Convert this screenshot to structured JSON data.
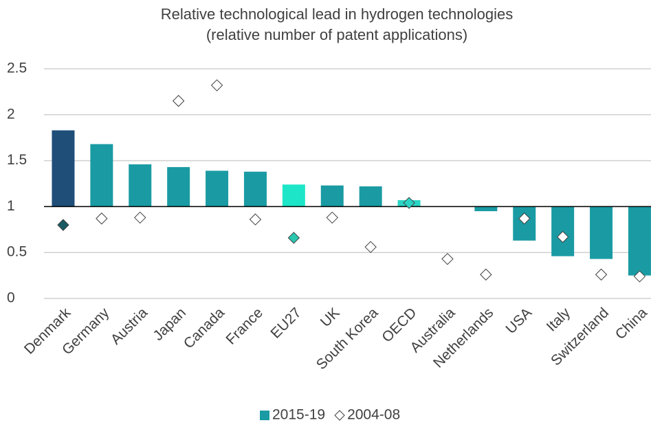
{
  "chart_data": {
    "type": "bar",
    "title": [
      "Relative technological lead in hydrogen technologies",
      "(relative number of patent applications)"
    ],
    "categories": [
      "Denmark",
      "Germany",
      "Austria",
      "Japan",
      "Canada",
      "France",
      "EU27",
      "UK",
      "South Korea",
      "OECD",
      "Australia",
      "Netherlands",
      "USA",
      "Italy",
      "Switzerland",
      "China"
    ],
    "series": [
      {
        "name": "2015-19",
        "type": "bar",
        "color": "#1a9ba3",
        "colors": [
          "#1f4e79",
          "#1a9ba3",
          "#1a9ba3",
          "#1a9ba3",
          "#1a9ba3",
          "#1a9ba3",
          "#1de5c8",
          "#1a9ba3",
          "#1a9ba3",
          "#2ad4c4",
          "#1a9ba3",
          "#1a9ba3",
          "#1a9ba3",
          "#1a9ba3",
          "#1a9ba3",
          "#1a9ba3"
        ],
        "values": [
          1.83,
          1.68,
          1.46,
          1.43,
          1.39,
          1.38,
          1.24,
          1.23,
          1.22,
          1.07,
          1.0,
          0.95,
          0.63,
          0.46,
          0.43,
          0.25
        ]
      },
      {
        "name": "2004-08",
        "type": "scatter",
        "color": "#ffffff",
        "colors": [
          "#1a5a63",
          "#ffffff",
          "#ffffff",
          "#ffffff",
          "#ffffff",
          "#ffffff",
          "#2ac7b0",
          "#ffffff",
          "#ffffff",
          "#2ad4c4",
          "#ffffff",
          "#ffffff",
          "#ffffff",
          "#ffffff",
          "#ffffff",
          "#ffffff"
        ],
        "values": [
          0.8,
          0.87,
          0.88,
          2.15,
          2.32,
          0.86,
          0.66,
          0.88,
          0.56,
          1.04,
          0.43,
          0.26,
          0.87,
          0.67,
          0.26,
          0.24
        ]
      }
    ],
    "ylim": [
      0,
      2.5
    ],
    "yticks": [
      0,
      0.5,
      1,
      1.5,
      2,
      2.5
    ],
    "baseline": 1,
    "grid": true,
    "legend": "bottom"
  }
}
